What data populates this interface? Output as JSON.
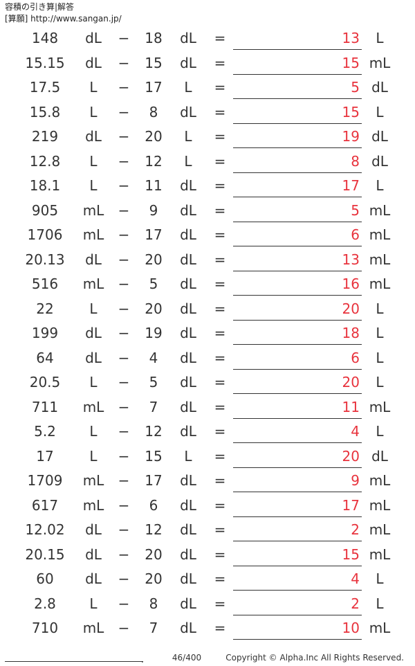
{
  "header": {
    "title": "容積の引き算|解答",
    "subtitle": "[算願] http://www.sangan.jp/"
  },
  "symbols": {
    "minus": "−",
    "equals": "="
  },
  "problems": [
    {
      "a": "148",
      "a_unit": "dL",
      "b": "18",
      "b_unit": "dL",
      "answer": "13",
      "answer_unit": "L"
    },
    {
      "a": "15.15",
      "a_unit": "dL",
      "b": "15",
      "b_unit": "dL",
      "answer": "15",
      "answer_unit": "mL"
    },
    {
      "a": "17.5",
      "a_unit": "L",
      "b": "17",
      "b_unit": "L",
      "answer": "5",
      "answer_unit": "dL"
    },
    {
      "a": "15.8",
      "a_unit": "L",
      "b": "8",
      "b_unit": "dL",
      "answer": "15",
      "answer_unit": "L"
    },
    {
      "a": "219",
      "a_unit": "dL",
      "b": "20",
      "b_unit": "L",
      "answer": "19",
      "answer_unit": "dL"
    },
    {
      "a": "12.8",
      "a_unit": "L",
      "b": "12",
      "b_unit": "L",
      "answer": "8",
      "answer_unit": "dL"
    },
    {
      "a": "18.1",
      "a_unit": "L",
      "b": "11",
      "b_unit": "dL",
      "answer": "17",
      "answer_unit": "L"
    },
    {
      "a": "905",
      "a_unit": "mL",
      "b": "9",
      "b_unit": "dL",
      "answer": "5",
      "answer_unit": "mL"
    },
    {
      "a": "1706",
      "a_unit": "mL",
      "b": "17",
      "b_unit": "dL",
      "answer": "6",
      "answer_unit": "mL"
    },
    {
      "a": "20.13",
      "a_unit": "dL",
      "b": "20",
      "b_unit": "dL",
      "answer": "13",
      "answer_unit": "mL"
    },
    {
      "a": "516",
      "a_unit": "mL",
      "b": "5",
      "b_unit": "dL",
      "answer": "16",
      "answer_unit": "mL"
    },
    {
      "a": "22",
      "a_unit": "L",
      "b": "20",
      "b_unit": "dL",
      "answer": "20",
      "answer_unit": "L"
    },
    {
      "a": "199",
      "a_unit": "dL",
      "b": "19",
      "b_unit": "dL",
      "answer": "18",
      "answer_unit": "L"
    },
    {
      "a": "64",
      "a_unit": "dL",
      "b": "4",
      "b_unit": "dL",
      "answer": "6",
      "answer_unit": "L"
    },
    {
      "a": "20.5",
      "a_unit": "L",
      "b": "5",
      "b_unit": "dL",
      "answer": "20",
      "answer_unit": "L"
    },
    {
      "a": "711",
      "a_unit": "mL",
      "b": "7",
      "b_unit": "dL",
      "answer": "11",
      "answer_unit": "mL"
    },
    {
      "a": "5.2",
      "a_unit": "L",
      "b": "12",
      "b_unit": "dL",
      "answer": "4",
      "answer_unit": "L"
    },
    {
      "a": "17",
      "a_unit": "L",
      "b": "15",
      "b_unit": "L",
      "answer": "20",
      "answer_unit": "dL"
    },
    {
      "a": "1709",
      "a_unit": "mL",
      "b": "17",
      "b_unit": "dL",
      "answer": "9",
      "answer_unit": "mL"
    },
    {
      "a": "617",
      "a_unit": "mL",
      "b": "6",
      "b_unit": "dL",
      "answer": "17",
      "answer_unit": "mL"
    },
    {
      "a": "12.02",
      "a_unit": "dL",
      "b": "12",
      "b_unit": "dL",
      "answer": "2",
      "answer_unit": "mL"
    },
    {
      "a": "20.15",
      "a_unit": "dL",
      "b": "20",
      "b_unit": "dL",
      "answer": "15",
      "answer_unit": "mL"
    },
    {
      "a": "60",
      "a_unit": "dL",
      "b": "20",
      "b_unit": "dL",
      "answer": "4",
      "answer_unit": "L"
    },
    {
      "a": "2.8",
      "a_unit": "L",
      "b": "8",
      "b_unit": "dL",
      "answer": "2",
      "answer_unit": "L"
    },
    {
      "a": "710",
      "a_unit": "mL",
      "b": "7",
      "b_unit": "dL",
      "answer": "10",
      "answer_unit": "mL"
    }
  ],
  "footer": {
    "dot": ".",
    "page": "46/400",
    "copyright": "Copyright © Alpha.Inc All Rights Reserved."
  },
  "colors": {
    "answer": "#e8333d",
    "text": "#333333"
  }
}
